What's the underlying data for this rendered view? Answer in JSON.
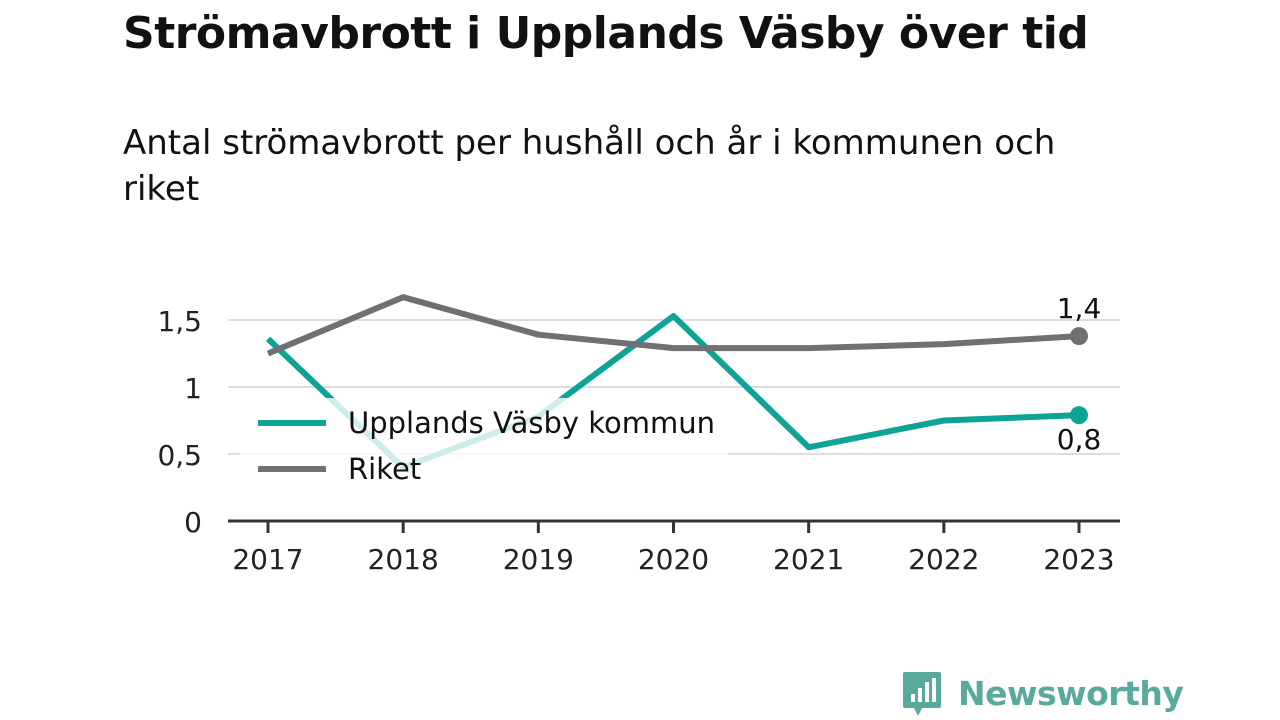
{
  "title": "Strömavbrott i Upplands Väsby över tid",
  "subtitle": "Antal strömavbrott per hushåll och år i kommunen och riket",
  "brand": {
    "name": "Newsworthy",
    "icon": "newsworthy-logo-icon",
    "color": "#5aa99f"
  },
  "colors": {
    "series1": "#0ea495",
    "series2": "#6f6f74",
    "grid": "#dddddd",
    "axis": "#333333"
  },
  "chart_data": {
    "type": "line",
    "x": [
      "2017",
      "2018",
      "2019",
      "2020",
      "2021",
      "2022",
      "2023"
    ],
    "ylim": [
      0,
      1.5
    ],
    "yticks": [
      0,
      0.5,
      1,
      1.5
    ],
    "ytick_labels": [
      "0",
      "0,5",
      "1",
      "1,5"
    ],
    "grid": true,
    "legend_position": "center-left",
    "series": [
      {
        "name": "Upplands Väsby kommun",
        "values": [
          1.36,
          0.4,
          0.78,
          1.53,
          0.55,
          0.75,
          0.79
        ],
        "end_label": "0,8"
      },
      {
        "name": "Riket",
        "values": [
          1.25,
          1.67,
          1.39,
          1.29,
          1.29,
          1.32,
          1.38
        ],
        "end_label": "1,4"
      }
    ]
  }
}
